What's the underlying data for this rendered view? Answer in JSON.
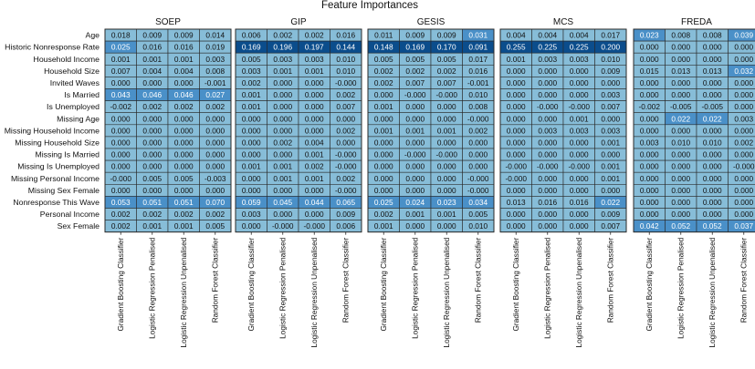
{
  "chart_data": {
    "type": "heatmap",
    "title": "Feature Importances",
    "rows": [
      "Age",
      "Historic Nonresponse Rate",
      "Household Income",
      "Household Size",
      "Invited Waves",
      "Is Married",
      "Is Unemployed",
      "Missing Age",
      "Missing Household Income",
      "Missing Household Size",
      "Missing Is Married",
      "Missing Is Unemployed",
      "Missing Personal Income",
      "Missing Sex Female",
      "Nonresponse This Wave",
      "Personal Income",
      "Sex Female"
    ],
    "columns": [
      "Gradient Boosting Classifier",
      "Logistic Regression Penalised",
      "Logistic Regression Unpenalised",
      "Random Forest Classifier"
    ],
    "colors": {
      "base": "#87bdd8",
      "mid": "#4a90c8",
      "dark": "#0b4d8c",
      "grid": "#2a2a2a"
    },
    "panels": [
      {
        "name": "SOEP",
        "cells": [
          [
            "0.018",
            "0.009",
            "0.009",
            "0.014"
          ],
          [
            "0.025",
            "0.016",
            "0.016",
            "0.019"
          ],
          [
            "0.001",
            "0.001",
            "0.001",
            "0.003"
          ],
          [
            "0.007",
            "0.004",
            "0.004",
            "0.008"
          ],
          [
            "0.000",
            "0.000",
            "0.000",
            "-0.001"
          ],
          [
            "0.043",
            "0.046",
            "0.046",
            "0.027"
          ],
          [
            "-0.002",
            "0.002",
            "0.002",
            "0.002"
          ],
          [
            "0.000",
            "0.000",
            "0.000",
            "0.000"
          ],
          [
            "0.000",
            "0.000",
            "0.000",
            "0.000"
          ],
          [
            "0.000",
            "0.000",
            "0.000",
            "0.000"
          ],
          [
            "0.000",
            "0.000",
            "0.000",
            "0.000"
          ],
          [
            "0.000",
            "0.000",
            "0.000",
            "0.000"
          ],
          [
            "-0.000",
            "0.005",
            "0.005",
            "-0.003"
          ],
          [
            "0.000",
            "0.000",
            "0.000",
            "0.000"
          ],
          [
            "0.053",
            "0.051",
            "0.051",
            "0.070"
          ],
          [
            "0.002",
            "0.002",
            "0.002",
            "0.002"
          ],
          [
            "0.002",
            "0.001",
            "0.001",
            "0.005"
          ]
        ]
      },
      {
        "name": "GIP",
        "cells": [
          [
            "0.006",
            "0.002",
            "0.002",
            "0.016"
          ],
          [
            "0.169",
            "0.196",
            "0.197",
            "0.144"
          ],
          [
            "0.005",
            "0.003",
            "0.003",
            "0.010"
          ],
          [
            "0.003",
            "0.001",
            "0.001",
            "0.010"
          ],
          [
            "0.002",
            "0.000",
            "0.000",
            "-0.000"
          ],
          [
            "0.001",
            "0.000",
            "0.000",
            "0.002"
          ],
          [
            "0.001",
            "0.000",
            "0.000",
            "0.007"
          ],
          [
            "0.000",
            "0.000",
            "0.000",
            "0.000"
          ],
          [
            "0.000",
            "0.000",
            "0.000",
            "0.002"
          ],
          [
            "0.000",
            "0.002",
            "0.004",
            "0.000"
          ],
          [
            "0.000",
            "0.000",
            "0.001",
            "-0.000"
          ],
          [
            "0.001",
            "0.001",
            "0.002",
            "-0.000"
          ],
          [
            "0.000",
            "0.001",
            "0.001",
            "0.002"
          ],
          [
            "0.000",
            "0.000",
            "0.000",
            "-0.000"
          ],
          [
            "0.059",
            "0.045",
            "0.044",
            "0.065"
          ],
          [
            "0.003",
            "0.000",
            "0.000",
            "0.009"
          ],
          [
            "0.000",
            "-0.000",
            "-0.000",
            "0.006"
          ]
        ]
      },
      {
        "name": "GESIS",
        "cells": [
          [
            "0.011",
            "0.009",
            "0.009",
            "0.031"
          ],
          [
            "0.148",
            "0.169",
            "0.170",
            "0.091"
          ],
          [
            "0.005",
            "0.005",
            "0.005",
            "0.017"
          ],
          [
            "0.002",
            "0.002",
            "0.002",
            "0.016"
          ],
          [
            "0.002",
            "0.007",
            "0.007",
            "-0.001"
          ],
          [
            "0.000",
            "-0.000",
            "-0.000",
            "0.010"
          ],
          [
            "0.001",
            "0.000",
            "0.000",
            "0.008"
          ],
          [
            "0.000",
            "0.000",
            "0.000",
            "-0.000"
          ],
          [
            "0.001",
            "0.001",
            "0.001",
            "0.002"
          ],
          [
            "0.000",
            "0.000",
            "0.000",
            "0.000"
          ],
          [
            "0.000",
            "-0.000",
            "-0.000",
            "0.000"
          ],
          [
            "0.000",
            "0.000",
            "0.000",
            "0.000"
          ],
          [
            "0.000",
            "0.000",
            "0.000",
            "-0.000"
          ],
          [
            "0.000",
            "0.000",
            "0.000",
            "-0.000"
          ],
          [
            "0.025",
            "0.024",
            "0.023",
            "0.034"
          ],
          [
            "0.002",
            "0.001",
            "0.001",
            "0.005"
          ],
          [
            "0.001",
            "0.000",
            "0.000",
            "0.010"
          ]
        ]
      },
      {
        "name": "MCS",
        "cells": [
          [
            "0.004",
            "0.004",
            "0.004",
            "0.017"
          ],
          [
            "0.255",
            "0.225",
            "0.225",
            "0.200"
          ],
          [
            "0.001",
            "0.003",
            "0.003",
            "0.010"
          ],
          [
            "0.000",
            "0.000",
            "0.000",
            "0.009"
          ],
          [
            "0.000",
            "0.000",
            "0.000",
            "0.000"
          ],
          [
            "0.000",
            "0.000",
            "0.000",
            "0.003"
          ],
          [
            "0.000",
            "-0.000",
            "-0.000",
            "0.007"
          ],
          [
            "0.000",
            "0.000",
            "0.001",
            "0.000"
          ],
          [
            "0.000",
            "0.003",
            "0.003",
            "0.003"
          ],
          [
            "0.000",
            "0.000",
            "0.000",
            "0.001"
          ],
          [
            "0.000",
            "0.000",
            "0.000",
            "0.000"
          ],
          [
            "-0.000",
            "-0.000",
            "-0.000",
            "0.001"
          ],
          [
            "-0.000",
            "0.000",
            "0.000",
            "0.001"
          ],
          [
            "0.000",
            "0.000",
            "0.000",
            "0.000"
          ],
          [
            "0.013",
            "0.016",
            "0.016",
            "0.022"
          ],
          [
            "0.000",
            "0.000",
            "0.000",
            "0.009"
          ],
          [
            "0.000",
            "0.000",
            "0.000",
            "0.007"
          ]
        ]
      },
      {
        "name": "FREDA",
        "cells": [
          [
            "0.023",
            "0.008",
            "0.008",
            "0.039"
          ],
          [
            "0.000",
            "0.000",
            "0.000",
            "0.000"
          ],
          [
            "0.000",
            "0.000",
            "0.000",
            "0.000"
          ],
          [
            "0.015",
            "0.013",
            "0.013",
            "0.032"
          ],
          [
            "0.000",
            "0.000",
            "0.000",
            "0.000"
          ],
          [
            "0.000",
            "0.000",
            "0.000",
            "0.000"
          ],
          [
            "-0.002",
            "-0.005",
            "-0.005",
            "0.000"
          ],
          [
            "0.000",
            "0.022",
            "0.022",
            "0.003"
          ],
          [
            "0.000",
            "0.000",
            "0.000",
            "0.000"
          ],
          [
            "0.003",
            "0.010",
            "0.010",
            "0.002"
          ],
          [
            "0.000",
            "0.000",
            "0.000",
            "0.000"
          ],
          [
            "0.000",
            "0.000",
            "0.000",
            "-0.000"
          ],
          [
            "0.000",
            "0.000",
            "0.000",
            "0.000"
          ],
          [
            "0.000",
            "0.000",
            "0.000",
            "0.000"
          ],
          [
            "0.000",
            "0.000",
            "0.000",
            "0.000"
          ],
          [
            "0.000",
            "0.000",
            "0.000",
            "0.000"
          ],
          [
            "0.042",
            "0.052",
            "0.052",
            "0.037"
          ]
        ]
      }
    ]
  }
}
